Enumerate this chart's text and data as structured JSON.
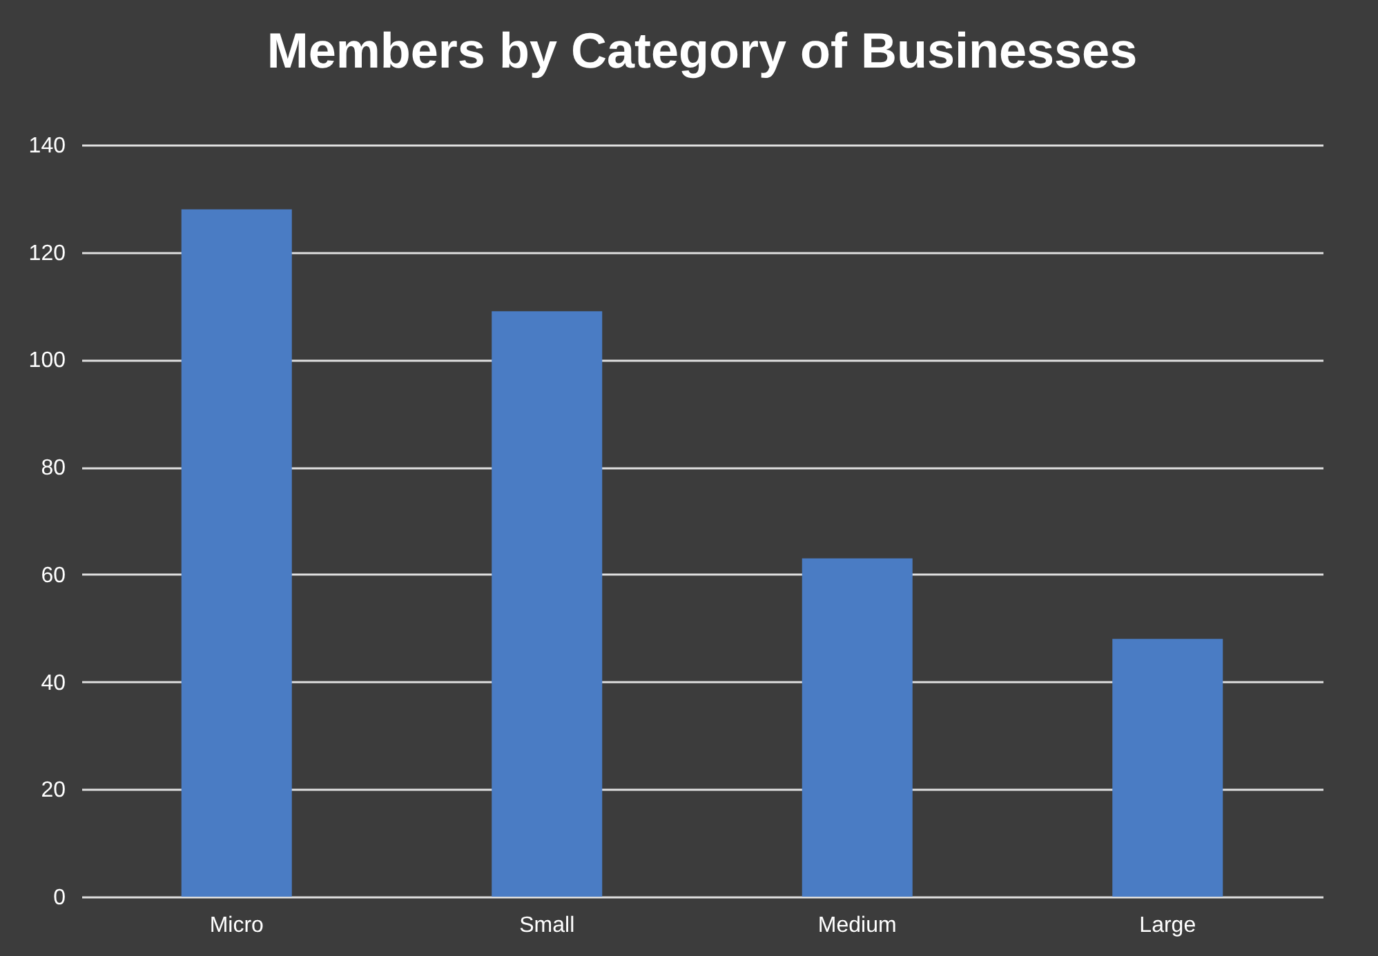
{
  "chart_data": {
    "type": "bar",
    "title": "Members by Category of Businesses",
    "categories": [
      "Micro",
      "Small",
      "Medium",
      "Large"
    ],
    "values": [
      128,
      109,
      63,
      48
    ],
    "color": "#4a7cc4",
    "ylim": [
      0,
      140
    ],
    "yticks": [
      0,
      20,
      40,
      60,
      80,
      100,
      120,
      140
    ],
    "grid": "y"
  }
}
